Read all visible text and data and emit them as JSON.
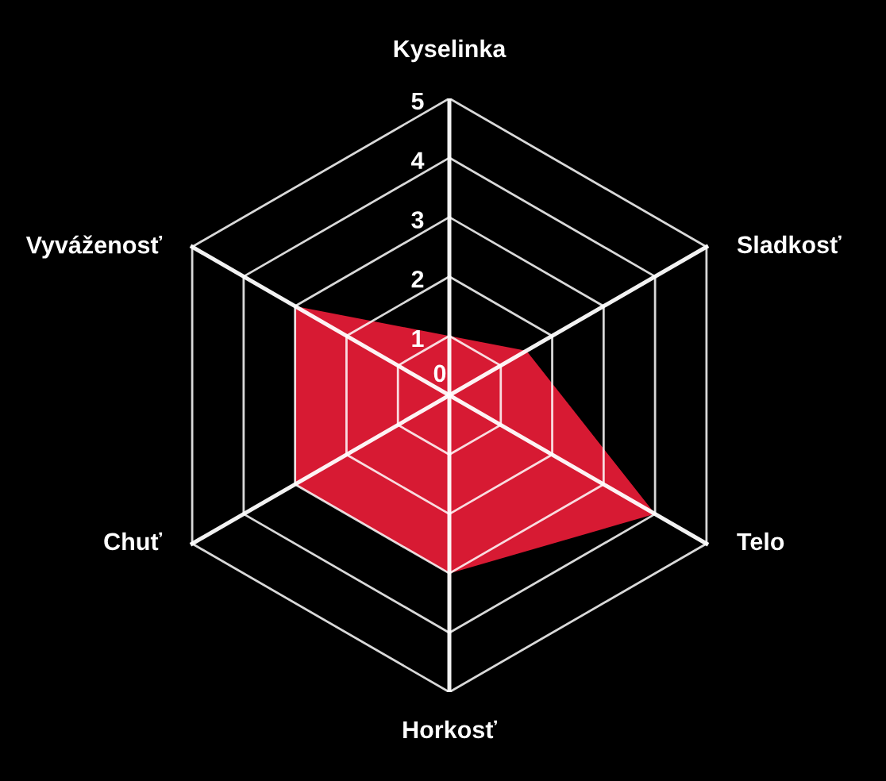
{
  "chart_data": {
    "type": "radar",
    "categories": [
      "Kyselinka",
      "Sladkosť",
      "Telo",
      "Horkosť",
      "Chuť",
      "Vyváženosť"
    ],
    "series": [
      {
        "color": "#d71a33",
        "values": [
          1,
          1.5,
          4,
          3,
          3,
          3
        ]
      }
    ],
    "ylim": [
      0,
      5
    ],
    "yticks": [
      0,
      1,
      2,
      3,
      4,
      5
    ],
    "grid": true
  }
}
